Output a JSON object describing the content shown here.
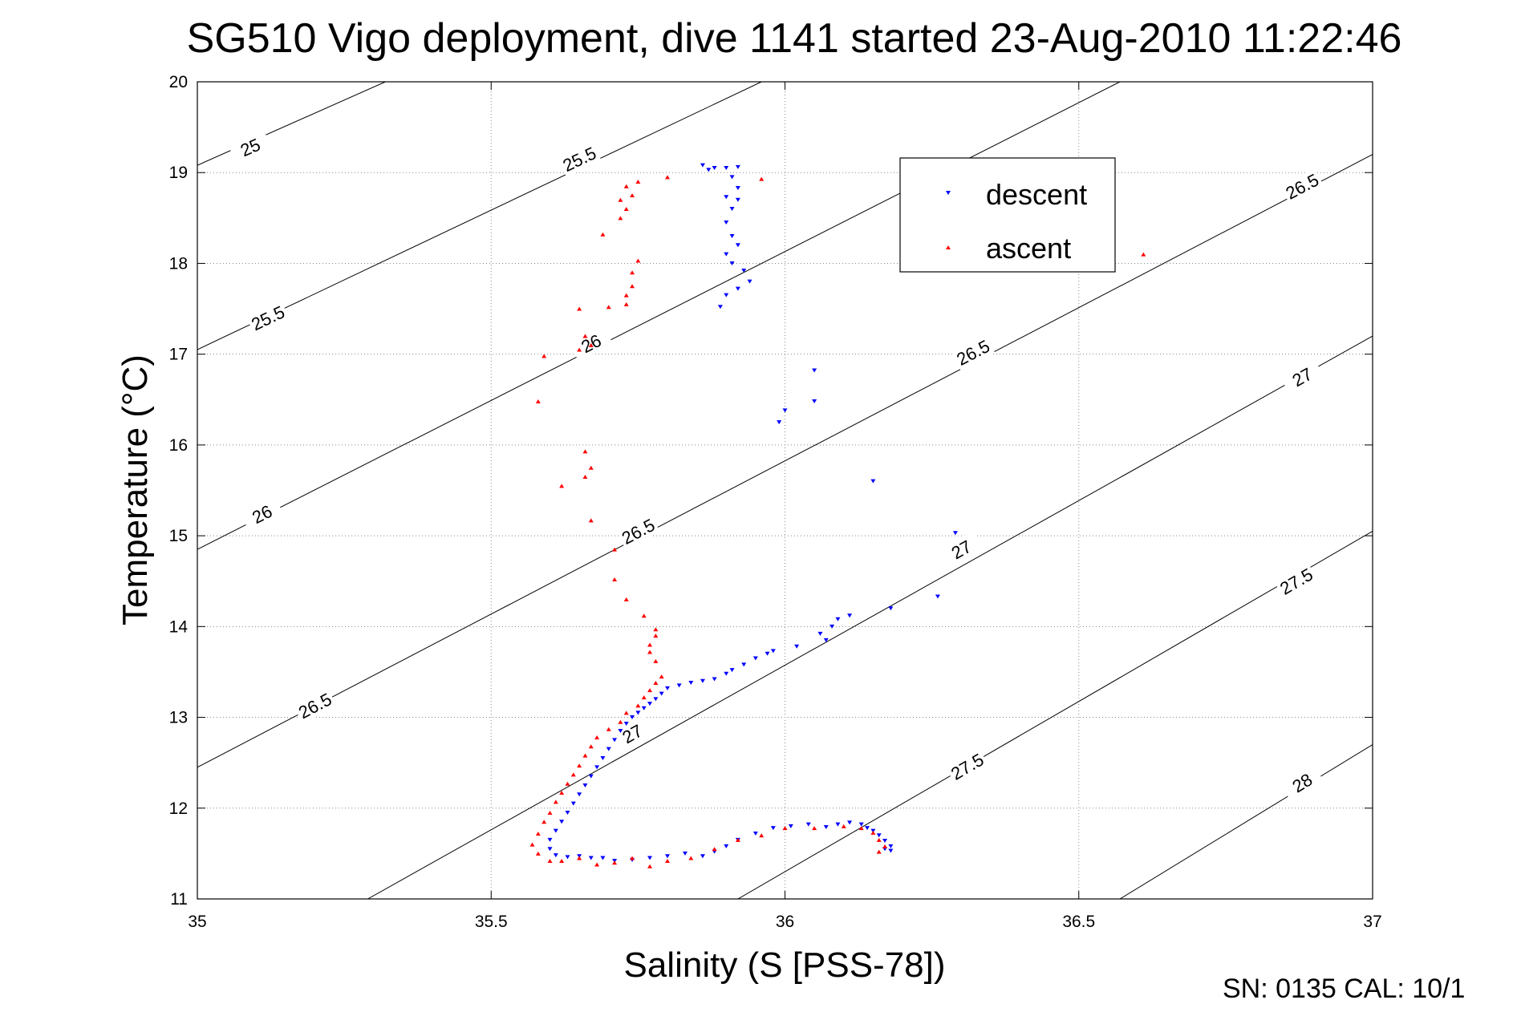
{
  "chart_data": {
    "type": "scatter",
    "title": "SG510 Vigo deployment, dive 1141 started 23-Aug-2010 11:22:46",
    "xlabel": "Salinity (S [PSS-78])",
    "ylabel": "Temperature (°C)",
    "xlim": [
      35,
      37
    ],
    "ylim": [
      11,
      20
    ],
    "xticks": [
      35,
      35.5,
      36,
      36.5,
      37
    ],
    "xtick_labels": [
      "35",
      "35.5",
      "36",
      "36.5",
      "37"
    ],
    "yticks": [
      11,
      12,
      13,
      14,
      15,
      16,
      17,
      18,
      19,
      20
    ],
    "ytick_labels": [
      "11",
      "12",
      "13",
      "14",
      "15",
      "16",
      "17",
      "18",
      "19",
      "20"
    ],
    "grid": true,
    "legend_position": "upper-right inside",
    "contours": [
      {
        "label": "25",
        "points": [
          [
            35,
            19.08
          ],
          [
            35.32,
            20
          ]
        ],
        "labels_at": [
          [
            35.09,
            19.28
          ]
        ]
      },
      {
        "label": "25.5",
        "points": [
          [
            35,
            17.05
          ],
          [
            35.96,
            20
          ]
        ],
        "labels_at": [
          [
            35.12,
            17.4
          ],
          [
            35.65,
            19.15
          ]
        ]
      },
      {
        "label": "26",
        "points": [
          [
            35,
            14.85
          ],
          [
            36.57,
            20
          ]
        ],
        "labels_at": [
          [
            35.11,
            15.24
          ],
          [
            35.67,
            17.12
          ]
        ]
      },
      {
        "label": "26.5",
        "points": [
          [
            35,
            12.45
          ],
          [
            37,
            19.2
          ]
        ],
        "labels_at": [
          [
            35.2,
            13.13
          ],
          [
            35.75,
            15.05
          ],
          [
            36.32,
            17.02
          ],
          [
            36.88,
            18.85
          ]
        ]
      },
      {
        "label": "27",
        "points": [
          [
            35.29,
            11
          ],
          [
            37,
            17.2
          ]
        ],
        "labels_at": [
          [
            35.74,
            12.82
          ],
          [
            36.3,
            14.85
          ],
          [
            36.88,
            16.75
          ]
        ]
      },
      {
        "label": "27.5",
        "points": [
          [
            35.92,
            11
          ],
          [
            37,
            15.05
          ]
        ],
        "labels_at": [
          [
            36.31,
            12.46
          ],
          [
            36.87,
            14.5
          ]
        ]
      },
      {
        "label": "28",
        "points": [
          [
            36.57,
            11
          ],
          [
            37,
            12.7
          ]
        ],
        "labels_at": [
          [
            36.88,
            12.28
          ]
        ]
      }
    ],
    "series": [
      {
        "name": "descent",
        "color": "#0000ff",
        "marker": "triangle-down",
        "points": [
          [
            35.86,
            19.08
          ],
          [
            35.87,
            19.03
          ],
          [
            35.88,
            19.05
          ],
          [
            35.9,
            19.05
          ],
          [
            35.92,
            19.06
          ],
          [
            35.91,
            18.95
          ],
          [
            35.92,
            18.83
          ],
          [
            35.9,
            18.73
          ],
          [
            35.92,
            18.7
          ],
          [
            35.91,
            18.6
          ],
          [
            35.9,
            18.45
          ],
          [
            35.91,
            18.3
          ],
          [
            35.92,
            18.2
          ],
          [
            35.9,
            18.1
          ],
          [
            35.91,
            18.0
          ],
          [
            35.93,
            17.92
          ],
          [
            35.94,
            17.8
          ],
          [
            35.92,
            17.72
          ],
          [
            35.9,
            17.65
          ],
          [
            35.89,
            17.52
          ],
          [
            36.05,
            16.82
          ],
          [
            36.05,
            16.48
          ],
          [
            36.0,
            16.38
          ],
          [
            35.99,
            16.25
          ],
          [
            36.15,
            15.6
          ],
          [
            36.29,
            15.03
          ],
          [
            36.26,
            14.33
          ],
          [
            36.18,
            14.2
          ],
          [
            36.11,
            14.12
          ],
          [
            36.09,
            14.08
          ],
          [
            36.08,
            14.0
          ],
          [
            36.06,
            13.92
          ],
          [
            36.07,
            13.85
          ],
          [
            36.02,
            13.78
          ],
          [
            35.98,
            13.73
          ],
          [
            35.97,
            13.7
          ],
          [
            35.95,
            13.65
          ],
          [
            35.93,
            13.58
          ],
          [
            35.91,
            13.52
          ],
          [
            35.9,
            13.48
          ],
          [
            35.88,
            13.42
          ],
          [
            35.86,
            13.4
          ],
          [
            35.84,
            13.38
          ],
          [
            35.82,
            13.35
          ],
          [
            35.8,
            13.32
          ],
          [
            35.79,
            13.26
          ],
          [
            35.78,
            13.2
          ],
          [
            35.77,
            13.15
          ],
          [
            35.76,
            13.1
          ],
          [
            35.75,
            13.05
          ],
          [
            35.74,
            13.0
          ],
          [
            35.73,
            12.93
          ],
          [
            35.72,
            12.85
          ],
          [
            35.71,
            12.75
          ],
          [
            35.7,
            12.65
          ],
          [
            35.69,
            12.55
          ],
          [
            35.68,
            12.45
          ],
          [
            35.67,
            12.35
          ],
          [
            35.66,
            12.25
          ],
          [
            35.65,
            12.15
          ],
          [
            35.64,
            12.05
          ],
          [
            35.63,
            11.95
          ],
          [
            35.62,
            11.85
          ],
          [
            35.61,
            11.75
          ],
          [
            35.6,
            11.65
          ],
          [
            35.6,
            11.55
          ],
          [
            35.61,
            11.48
          ],
          [
            35.63,
            11.46
          ],
          [
            35.65,
            11.47
          ],
          [
            35.67,
            11.45
          ],
          [
            35.69,
            11.45
          ],
          [
            35.71,
            11.42
          ],
          [
            35.74,
            11.43
          ],
          [
            35.77,
            11.45
          ],
          [
            35.8,
            11.47
          ],
          [
            35.83,
            11.5
          ],
          [
            35.86,
            11.47
          ],
          [
            35.88,
            11.52
          ],
          [
            35.9,
            11.58
          ],
          [
            35.92,
            11.65
          ],
          [
            35.95,
            11.72
          ],
          [
            35.98,
            11.78
          ],
          [
            36.01,
            11.8
          ],
          [
            36.04,
            11.82
          ],
          [
            36.07,
            11.79
          ],
          [
            36.09,
            11.82
          ],
          [
            36.11,
            11.84
          ],
          [
            36.13,
            11.82
          ],
          [
            36.14,
            11.78
          ],
          [
            36.15,
            11.75
          ],
          [
            36.16,
            11.7
          ],
          [
            36.17,
            11.64
          ],
          [
            36.18,
            11.58
          ],
          [
            36.17,
            11.55
          ],
          [
            36.18,
            11.53
          ]
        ]
      },
      {
        "name": "ascent",
        "color": "#ff0000",
        "marker": "triangle-up",
        "points": [
          [
            35.8,
            18.95
          ],
          [
            35.96,
            18.93
          ],
          [
            35.75,
            18.9
          ],
          [
            35.73,
            18.85
          ],
          [
            35.74,
            18.75
          ],
          [
            35.72,
            18.7
          ],
          [
            35.73,
            18.6
          ],
          [
            35.72,
            18.5
          ],
          [
            35.69,
            18.32
          ],
          [
            36.61,
            18.1
          ],
          [
            35.75,
            18.03
          ],
          [
            35.74,
            17.9
          ],
          [
            35.74,
            17.75
          ],
          [
            35.73,
            17.65
          ],
          [
            35.73,
            17.55
          ],
          [
            35.7,
            17.52
          ],
          [
            35.65,
            17.5
          ],
          [
            35.66,
            17.2
          ],
          [
            35.67,
            17.1
          ],
          [
            35.65,
            17.05
          ],
          [
            35.59,
            16.98
          ],
          [
            35.58,
            16.48
          ],
          [
            35.66,
            15.93
          ],
          [
            35.67,
            15.75
          ],
          [
            35.66,
            15.65
          ],
          [
            35.62,
            15.55
          ],
          [
            35.67,
            15.17
          ],
          [
            35.71,
            14.85
          ],
          [
            35.71,
            14.52
          ],
          [
            35.73,
            14.3
          ],
          [
            35.76,
            14.12
          ],
          [
            35.78,
            13.97
          ],
          [
            35.78,
            13.9
          ],
          [
            35.77,
            13.8
          ],
          [
            35.77,
            13.72
          ],
          [
            35.78,
            13.62
          ],
          [
            35.79,
            13.45
          ],
          [
            35.78,
            13.38
          ],
          [
            35.77,
            13.3
          ],
          [
            35.76,
            13.22
          ],
          [
            35.75,
            13.13
          ],
          [
            35.73,
            13.05
          ],
          [
            35.72,
            12.95
          ],
          [
            35.7,
            12.87
          ],
          [
            35.68,
            12.78
          ],
          [
            35.67,
            12.68
          ],
          [
            35.66,
            12.58
          ],
          [
            35.65,
            12.47
          ],
          [
            35.64,
            12.37
          ],
          [
            35.63,
            12.27
          ],
          [
            35.62,
            12.17
          ],
          [
            35.61,
            12.07
          ],
          [
            35.6,
            11.95
          ],
          [
            35.59,
            11.85
          ],
          [
            35.58,
            11.72
          ],
          [
            35.57,
            11.6
          ],
          [
            35.58,
            11.5
          ],
          [
            35.6,
            11.42
          ],
          [
            35.62,
            11.42
          ],
          [
            35.65,
            11.45
          ],
          [
            35.68,
            11.38
          ],
          [
            35.71,
            11.4
          ],
          [
            35.74,
            11.45
          ],
          [
            35.77,
            11.36
          ],
          [
            35.8,
            11.42
          ],
          [
            35.84,
            11.45
          ],
          [
            35.88,
            11.55
          ],
          [
            35.92,
            11.65
          ],
          [
            35.96,
            11.7
          ],
          [
            36.0,
            11.78
          ],
          [
            36.05,
            11.78
          ],
          [
            36.1,
            11.8
          ],
          [
            36.13,
            11.78
          ],
          [
            36.15,
            11.73
          ],
          [
            36.16,
            11.65
          ],
          [
            36.17,
            11.58
          ],
          [
            36.16,
            11.52
          ]
        ]
      }
    ]
  },
  "footer": {
    "calibration": "SN: 0135  CAL: 10/1"
  }
}
